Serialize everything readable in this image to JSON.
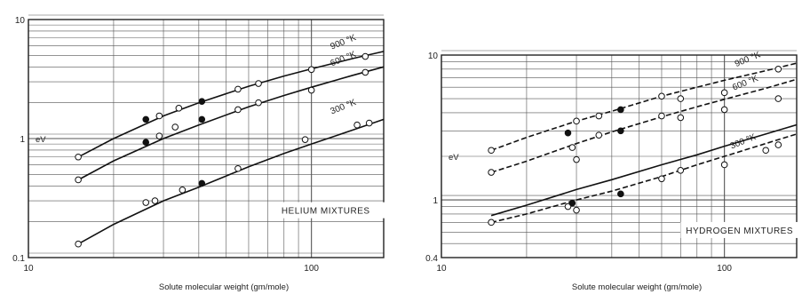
{
  "chart_data": [
    {
      "type": "line",
      "xscale": "log",
      "yscale": "log",
      "xlim": [
        10,
        180
      ],
      "ylim": [
        0.1,
        10
      ],
      "xlabel": "Solute molecular weight  (gm/mole)",
      "ylabel": "eV",
      "annotation": "HELIUM  MIXTURES",
      "x_ticks": [
        10,
        100
      ],
      "x_tick_labels": [
        "10",
        "100"
      ],
      "y_ticks": [
        0.1,
        1,
        10
      ],
      "y_tick_labels": [
        "0.1",
        "1",
        "10"
      ],
      "grid": true,
      "series": [
        {
          "name": "900 °K",
          "curve_x": [
            15,
            20,
            30,
            40,
            60,
            80,
            100,
            140,
            180
          ],
          "curve_y": [
            0.7,
            1.0,
            1.55,
            2.0,
            2.75,
            3.35,
            3.85,
            4.7,
            5.4
          ],
          "points": [
            {
              "x": 15,
              "y": 0.7,
              "filled": false
            },
            {
              "x": 26,
              "y": 1.45,
              "filled": true
            },
            {
              "x": 29,
              "y": 1.55,
              "filled": false
            },
            {
              "x": 34,
              "y": 1.8,
              "filled": false
            },
            {
              "x": 41,
              "y": 2.05,
              "filled": true
            },
            {
              "x": 55,
              "y": 2.6,
              "filled": false
            },
            {
              "x": 65,
              "y": 2.9,
              "filled": false
            },
            {
              "x": 100,
              "y": 3.8,
              "filled": false
            },
            {
              "x": 155,
              "y": 4.9,
              "filled": false
            }
          ]
        },
        {
          "name": "600 °K",
          "curve_x": [
            15,
            20,
            30,
            40,
            60,
            80,
            100,
            140,
            180
          ],
          "curve_y": [
            0.45,
            0.65,
            1.0,
            1.3,
            1.85,
            2.3,
            2.7,
            3.4,
            4.0
          ],
          "points": [
            {
              "x": 15,
              "y": 0.45,
              "filled": false
            },
            {
              "x": 26,
              "y": 0.93,
              "filled": true
            },
            {
              "x": 29,
              "y": 1.05,
              "filled": false
            },
            {
              "x": 33,
              "y": 1.25,
              "filled": false
            },
            {
              "x": 41,
              "y": 1.45,
              "filled": true
            },
            {
              "x": 55,
              "y": 1.75,
              "filled": false
            },
            {
              "x": 65,
              "y": 2.0,
              "filled": false
            },
            {
              "x": 100,
              "y": 2.55,
              "filled": false
            },
            {
              "x": 155,
              "y": 3.6,
              "filled": false
            }
          ]
        },
        {
          "name": "300 °K",
          "curve_x": [
            15,
            20,
            30,
            40,
            60,
            80,
            100,
            140,
            180
          ],
          "curve_y": [
            0.13,
            0.19,
            0.3,
            0.39,
            0.58,
            0.75,
            0.9,
            1.18,
            1.45
          ],
          "points": [
            {
              "x": 15,
              "y": 0.13,
              "filled": false
            },
            {
              "x": 26,
              "y": 0.29,
              "filled": false
            },
            {
              "x": 28,
              "y": 0.3,
              "filled": false
            },
            {
              "x": 35,
              "y": 0.37,
              "filled": false
            },
            {
              "x": 41,
              "y": 0.42,
              "filled": true
            },
            {
              "x": 55,
              "y": 0.56,
              "filled": false
            },
            {
              "x": 95,
              "y": 0.98,
              "filled": false
            },
            {
              "x": 145,
              "y": 1.3,
              "filled": false
            },
            {
              "x": 160,
              "y": 1.35,
              "filled": false
            }
          ]
        }
      ]
    },
    {
      "type": "line",
      "xscale": "log",
      "yscale": "log",
      "xlim": [
        10,
        180
      ],
      "ylim": [
        0.4,
        10
      ],
      "xlabel": "Solute molecular weight  (gm/mole)",
      "ylabel": "eV",
      "annotation": "HYDROGEN  MIXTURES",
      "x_ticks": [
        10,
        100
      ],
      "x_tick_labels": [
        "10",
        "100"
      ],
      "y_ticks": [
        0.4,
        1,
        10
      ],
      "y_tick_labels": [
        "0.4",
        "1",
        "10"
      ],
      "grid": true,
      "series": [
        {
          "name": "900 °K",
          "dashed": true,
          "curve_x": [
            15,
            20,
            30,
            40,
            60,
            80,
            100,
            140,
            180
          ],
          "curve_y": [
            2.2,
            2.7,
            3.5,
            4.1,
            5.2,
            6.0,
            6.7,
            7.8,
            8.8
          ],
          "points": [
            {
              "x": 15,
              "y": 2.2,
              "filled": false
            },
            {
              "x": 30,
              "y": 3.5,
              "filled": false
            },
            {
              "x": 36,
              "y": 3.8,
              "filled": false
            },
            {
              "x": 43,
              "y": 4.2,
              "filled": true
            },
            {
              "x": 60,
              "y": 5.2,
              "filled": false
            },
            {
              "x": 70,
              "y": 5.0,
              "filled": false
            },
            {
              "x": 100,
              "y": 5.5,
              "filled": false
            },
            {
              "x": 155,
              "y": 8.0,
              "filled": false
            }
          ]
        },
        {
          "name": "600 °K",
          "dashed": true,
          "curve_x": [
            15,
            20,
            30,
            40,
            60,
            80,
            100,
            140,
            180
          ],
          "curve_y": [
            1.55,
            1.85,
            2.45,
            2.95,
            3.75,
            4.4,
            4.95,
            5.9,
            6.8
          ],
          "points": [
            {
              "x": 15,
              "y": 1.55,
              "filled": false
            },
            {
              "x": 28,
              "y": 2.9,
              "filled": true
            },
            {
              "x": 29,
              "y": 2.3,
              "filled": false
            },
            {
              "x": 30,
              "y": 1.9,
              "filled": false
            },
            {
              "x": 36,
              "y": 2.8,
              "filled": false
            },
            {
              "x": 43,
              "y": 3.0,
              "filled": true
            },
            {
              "x": 60,
              "y": 3.8,
              "filled": false
            },
            {
              "x": 70,
              "y": 3.7,
              "filled": false
            },
            {
              "x": 100,
              "y": 4.2,
              "filled": false
            },
            {
              "x": 155,
              "y": 5.0,
              "filled": false
            }
          ]
        },
        {
          "name": "300 °K",
          "dashed": true,
          "curve_x": [
            15,
            20,
            30,
            40,
            60,
            80,
            100,
            140,
            180
          ],
          "curve_y": [
            0.7,
            0.8,
            1.0,
            1.15,
            1.45,
            1.75,
            2.0,
            2.45,
            2.85
          ],
          "points": [
            {
              "x": 15,
              "y": 0.7,
              "filled": false
            },
            {
              "x": 28,
              "y": 0.9,
              "filled": false
            },
            {
              "x": 29,
              "y": 0.95,
              "filled": true
            },
            {
              "x": 30,
              "y": 0.85,
              "filled": false
            },
            {
              "x": 43,
              "y": 1.1,
              "filled": true
            },
            {
              "x": 60,
              "y": 1.4,
              "filled": false
            },
            {
              "x": 70,
              "y": 1.6,
              "filled": false
            },
            {
              "x": 100,
              "y": 1.75,
              "filled": false
            },
            {
              "x": 140,
              "y": 2.2,
              "filled": false
            },
            {
              "x": 155,
              "y": 2.4,
              "filled": false
            }
          ]
        },
        {
          "name": "",
          "dashed": false,
          "curve_x": [
            15,
            20,
            30,
            40,
            60,
            80,
            100,
            140,
            180
          ],
          "curve_y": [
            0.78,
            0.92,
            1.18,
            1.38,
            1.75,
            2.05,
            2.35,
            2.85,
            3.3
          ],
          "points": []
        }
      ]
    }
  ]
}
